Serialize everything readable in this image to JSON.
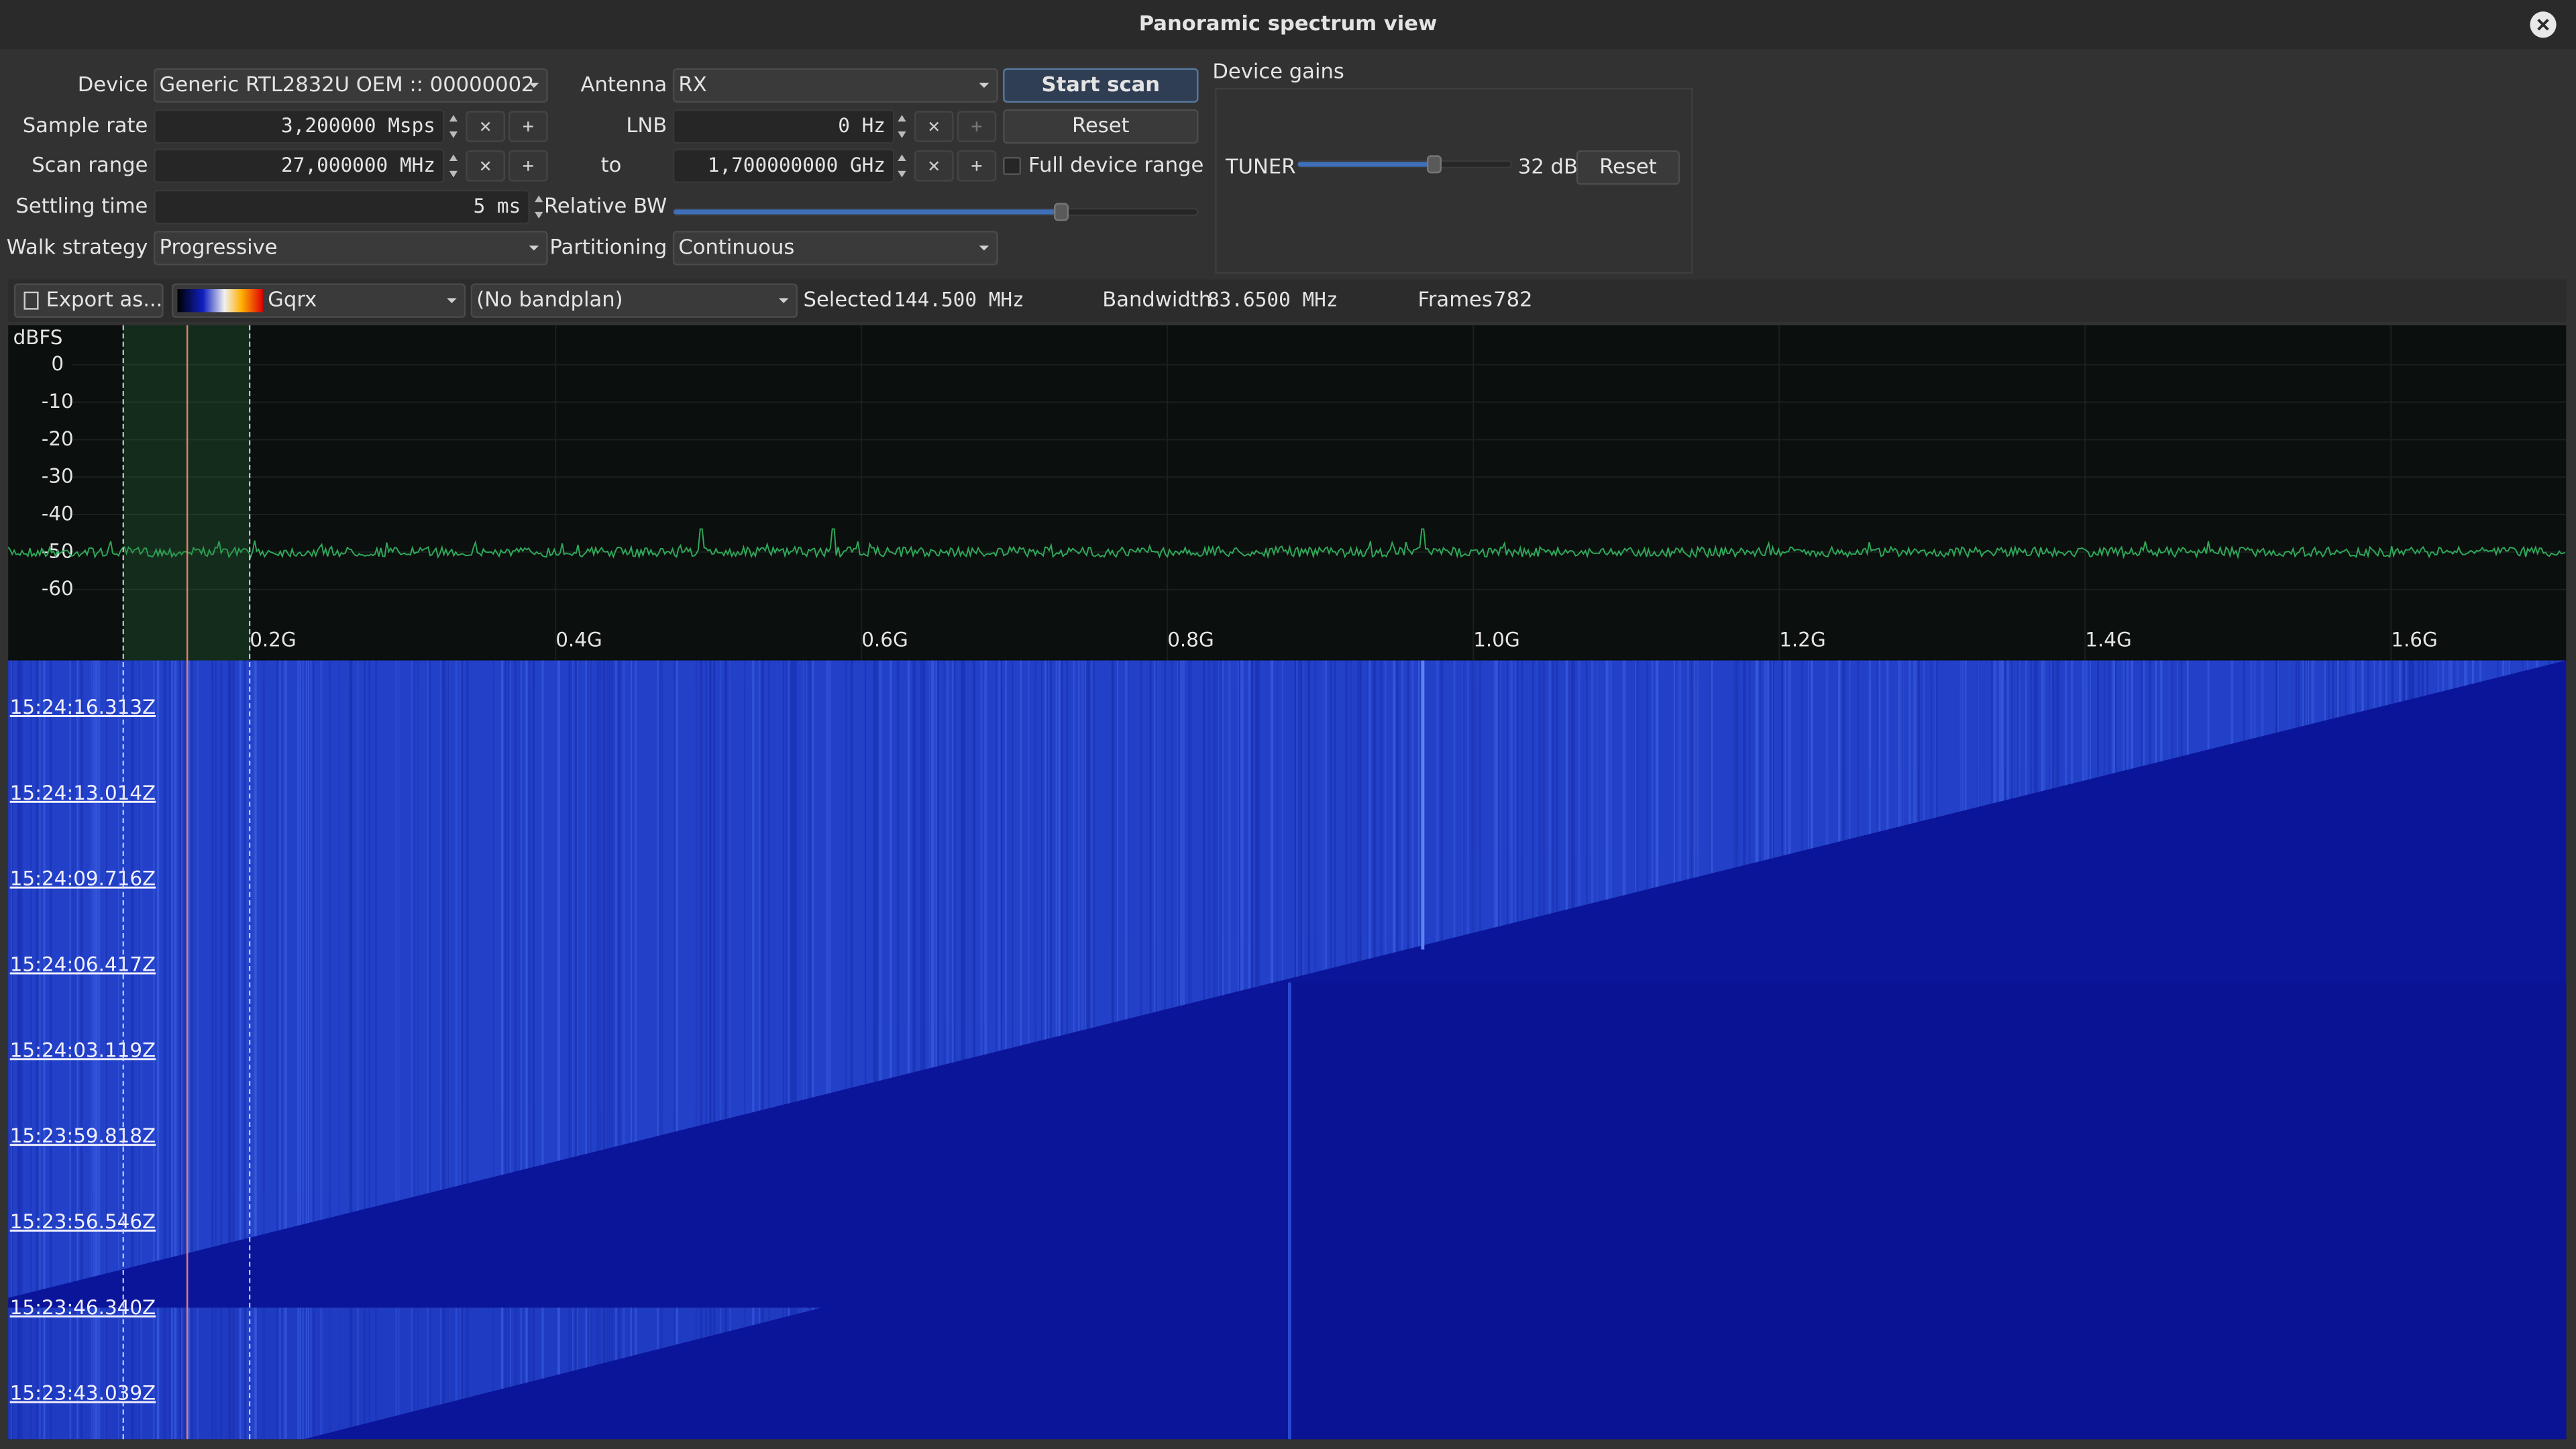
{
  "window": {
    "title": "Panoramic spectrum view"
  },
  "controls": {
    "device": {
      "label": "Device",
      "value": "Generic RTL2832U OEM :: 00000002"
    },
    "antenna": {
      "label": "Antenna",
      "value": "RX"
    },
    "start_scan": "Start scan",
    "sample_rate": {
      "label": "Sample rate",
      "value": "3,200000 Msps"
    },
    "lnb": {
      "label": "LNB",
      "value": "0 Hz"
    },
    "reset": "Reset",
    "scan_range": {
      "label": "Scan range",
      "from": "27,000000 MHz",
      "to_label": "to",
      "to": "1,700000000 GHz"
    },
    "full_device_range": "Full device range",
    "settling_time": {
      "label": "Settling time",
      "value": "5 ms"
    },
    "relative_bw": "Relative BW",
    "walk_strategy": {
      "label": "Walk strategy",
      "value": "Progressive"
    },
    "partitioning": {
      "label": "Partitioning",
      "value": "Continuous"
    }
  },
  "gains": {
    "title": "Device gains",
    "tuner": "TUNER",
    "value": "32 dB",
    "reset": "Reset"
  },
  "toolbar": {
    "export": "Export as...",
    "palette": "Gqrx",
    "bandplan": "(No bandplan)",
    "selected_label": "Selected",
    "selected": "144.500 MHz",
    "bandwidth_label": "Bandwidth",
    "bandwidth": "83.6500 MHz",
    "frames_label": "Frames",
    "frames": 782
  },
  "spectrum": {
    "unit": "dBFS",
    "y_labels": [
      "0",
      "-10",
      "-20",
      "-30",
      "-40",
      "-50",
      "-60"
    ],
    "x_labels": [
      "0.2G",
      "0.4G",
      "0.6G",
      "0.8G",
      "1.0G",
      "1.2G",
      "1.4G",
      "1.6G"
    ]
  },
  "waterfall": {
    "timestamps": [
      "15:24:16.313Z",
      "15:24:13.014Z",
      "15:24:09.716Z",
      "15:24:06.417Z",
      "15:24:03.119Z",
      "15:23:59.818Z",
      "15:23:56.546Z",
      "15:23:46.340Z",
      "15:23:43.039Z"
    ]
  }
}
